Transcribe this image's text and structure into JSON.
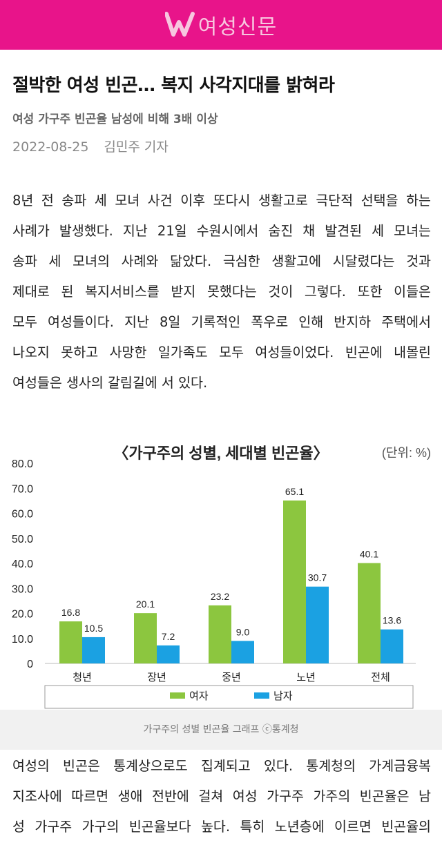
{
  "header": {
    "brand": "여성신문",
    "colors": {
      "bar": "#e8148a"
    }
  },
  "article": {
    "title": "절박한 여성 빈곤… 복지 사각지대를 밝혀라",
    "subtitle": "여성 가구주 빈곤율 남성에 비해 3배 이상",
    "date": "2022-08-25",
    "author": "김민주 기자",
    "para1": [
      "8년 전 송파 세 모녀 사건 이후 또다시 생활고로 극단적 선택을 하는",
      "사례가 발생했다. 지난 21일 수원시에서 숨진 채 발견된 세 모녀는",
      "송파 세 모녀의 사례와 닮았다. 극심한 생활고에 시달렸다는 것과",
      "제대로 된 복지서비스를 받지 못했다는 것이 그렇다. 또한 이들은",
      "모두 여성들이다. 지난 8일 기록적인 폭우로 인해 반지하 주택에서",
      "나오지 못하고 사망한 일가족도 모두 여성들이었다. 빈곤에 내몰린",
      "여성들은 생사의 갈림길에 서 있다."
    ],
    "caption": "가구주의 성별 빈곤율 그래프 ⓒ통계청",
    "para2": [
      "여성의 빈곤은 통계상으로도 집계되고 있다. 통계청의 가계금융복",
      "지조사에 따르면 생애 전반에 걸쳐 여성 가구주 가주의 빈곤율은 남",
      "성 가구주 가구의 빈곤율보다 높다. 특히 노년층에 이르면 빈곤율의"
    ]
  },
  "chart_data": {
    "type": "bar",
    "title": "〈가구주의 성별, 세대별 빈곤율〉",
    "unit_label": "(단위: %)",
    "categories": [
      "청년",
      "장년",
      "중년",
      "노년",
      "전체"
    ],
    "series": [
      {
        "name": "여자",
        "values": [
          16.8,
          20.1,
          23.2,
          65.1,
          40.1
        ],
        "color": "#8cc63f"
      },
      {
        "name": "남자",
        "values": [
          10.5,
          7.2,
          9.0,
          30.7,
          13.6
        ],
        "color": "#1ba1e2"
      }
    ],
    "value_labels": [
      [
        "16.8",
        "20.1",
        "23.2",
        "65.1",
        "40.1"
      ],
      [
        "10.5",
        "7.2",
        "9.0",
        "30.7",
        "13.6"
      ]
    ],
    "yticks": [
      "0",
      "10.0",
      "20.0",
      "30.0",
      "40.0",
      "50.0",
      "60.0",
      "70.0",
      "80.0"
    ],
    "ylim": [
      0,
      80
    ],
    "grid": false,
    "legend": "bottom"
  }
}
